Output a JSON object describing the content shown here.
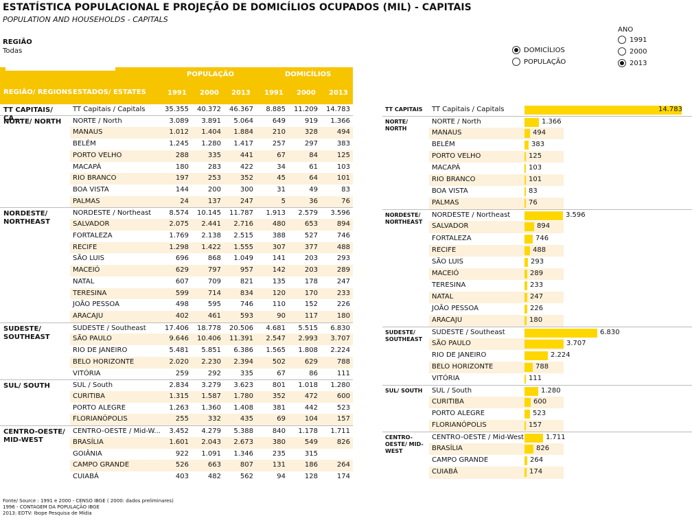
{
  "title": "ESTATÍSTICA POPULACIONAL  E PROJEÇÃO DE DOMICÍLIOS OCUPADOS (MIL) - CAPITAIS",
  "subtitle": "POPULATION AND HOUSEHOLDS - CAPITALS",
  "filter": {
    "label": "REGIÃO",
    "value": "Todas"
  },
  "measure": {
    "options": [
      "DOMICÍLIOS",
      "POPULAÇÃO"
    ],
    "selected": "DOMICÍLIOS"
  },
  "year": {
    "label": "ANO",
    "options": [
      "1991",
      "2000",
      "2013"
    ],
    "selected": "2013"
  },
  "table": {
    "group_headers": [
      "POPULAÇÃO",
      "DOMICÍLIOS"
    ],
    "col_region": "REGIÃO/ REGIONS",
    "col_state": "ESTADOS/ ESTATES",
    "years": [
      "1991",
      "2000",
      "2013",
      "1991",
      "2000",
      "2013"
    ],
    "total": {
      "region": "TT CAPITAIS/ CA...",
      "name": "TT Capitais / Capitals",
      "vals": [
        "35.355",
        "40.372",
        "46.367",
        "8.885",
        "11.209",
        "14.783"
      ]
    },
    "groups": [
      {
        "region": "NORTE/ NORTH",
        "rows": [
          {
            "name": "NORTE / North",
            "vals": [
              "3.089",
              "3.891",
              "5.064",
              "649",
              "919",
              "1.366"
            ]
          },
          {
            "name": "MANAUS",
            "vals": [
              "1.012",
              "1.404",
              "1.884",
              "210",
              "328",
              "494"
            ]
          },
          {
            "name": "BELÉM",
            "vals": [
              "1.245",
              "1.280",
              "1.417",
              "257",
              "297",
              "383"
            ]
          },
          {
            "name": "PORTO VELHO",
            "vals": [
              "288",
              "335",
              "441",
              "67",
              "84",
              "125"
            ]
          },
          {
            "name": "MACAPÁ",
            "vals": [
              "180",
              "283",
              "422",
              "34",
              "61",
              "103"
            ]
          },
          {
            "name": "RIO BRANCO",
            "vals": [
              "197",
              "253",
              "352",
              "45",
              "64",
              "101"
            ]
          },
          {
            "name": "BOA VISTA",
            "vals": [
              "144",
              "200",
              "300",
              "31",
              "49",
              "83"
            ]
          },
          {
            "name": "PALMAS",
            "vals": [
              "24",
              "137",
              "247",
              "5",
              "36",
              "76"
            ]
          }
        ]
      },
      {
        "region": "NORDESTE/ NORTHEAST",
        "rows": [
          {
            "name": "NORDESTE /  Northeast",
            "vals": [
              "8.574",
              "10.145",
              "11.787",
              "1.913",
              "2.579",
              "3.596"
            ]
          },
          {
            "name": "SALVADOR",
            "vals": [
              "2.075",
              "2.441",
              "2.716",
              "480",
              "653",
              "894"
            ]
          },
          {
            "name": "FORTALEZA",
            "vals": [
              "1.769",
              "2.138",
              "2.515",
              "388",
              "527",
              "746"
            ]
          },
          {
            "name": "RECIFE",
            "vals": [
              "1.298",
              "1.422",
              "1.555",
              "307",
              "377",
              "488"
            ]
          },
          {
            "name": "SÃO LUIS",
            "vals": [
              "696",
              "868",
              "1.049",
              "141",
              "203",
              "293"
            ]
          },
          {
            "name": "MACEIÓ",
            "vals": [
              "629",
              "797",
              "957",
              "142",
              "203",
              "289"
            ]
          },
          {
            "name": "NATAL",
            "vals": [
              "607",
              "709",
              "821",
              "135",
              "178",
              "247"
            ]
          },
          {
            "name": "TERESINA",
            "vals": [
              "599",
              "714",
              "834",
              "120",
              "170",
              "233"
            ]
          },
          {
            "name": "JOÃO PESSOA",
            "vals": [
              "498",
              "595",
              "746",
              "110",
              "152",
              "226"
            ]
          },
          {
            "name": "ARACAJU",
            "vals": [
              "402",
              "461",
              "593",
              "90",
              "117",
              "180"
            ]
          }
        ]
      },
      {
        "region": "SUDESTE/ SOUTHEAST",
        "rows": [
          {
            "name": "SUDESTE / Southeast",
            "vals": [
              "17.406",
              "18.778",
              "20.506",
              "4.681",
              "5.515",
              "6.830"
            ]
          },
          {
            "name": "SÃO PAULO",
            "vals": [
              "9.646",
              "10.406",
              "11.391",
              "2.547",
              "2.993",
              "3.707"
            ]
          },
          {
            "name": "RIO DE JANEIRO",
            "vals": [
              "5.481",
              "5.851",
              "6.386",
              "1.565",
              "1.808",
              "2.224"
            ]
          },
          {
            "name": "BELO HORIZONTE",
            "vals": [
              "2.020",
              "2.230",
              "2.394",
              "502",
              "629",
              "788"
            ]
          },
          {
            "name": "VITÓRIA",
            "vals": [
              "259",
              "292",
              "335",
              "67",
              "86",
              "111"
            ]
          }
        ]
      },
      {
        "region": "SUL/ SOUTH",
        "rows": [
          {
            "name": "SUL / South",
            "vals": [
              "2.834",
              "3.279",
              "3.623",
              "801",
              "1.018",
              "1.280"
            ]
          },
          {
            "name": "CURITIBA",
            "vals": [
              "1.315",
              "1.587",
              "1.780",
              "352",
              "472",
              "600"
            ]
          },
          {
            "name": "PORTO ALEGRE",
            "vals": [
              "1.263",
              "1.360",
              "1.408",
              "381",
              "442",
              "523"
            ]
          },
          {
            "name": "FLORIANÓPOLIS",
            "vals": [
              "255",
              "332",
              "435",
              "69",
              "104",
              "157"
            ]
          }
        ]
      },
      {
        "region": "CENTRO-OESTE/ MID-WEST",
        "rows": [
          {
            "name": "CENTRO-OESTE / Mid-W...",
            "vals": [
              "3.452",
              "4.279",
              "5.388",
              "840",
              "1.178",
              "1.711"
            ]
          },
          {
            "name": "BRASÍLIA",
            "vals": [
              "1.601",
              "2.043",
              "2.673",
              "380",
              "549",
              "826"
            ]
          },
          {
            "name": "GOIÂNIA",
            "vals": [
              "922",
              "1.091",
              "1.346",
              "235",
              "315",
              ""
            ]
          },
          {
            "name": "CAMPO GRANDE",
            "vals": [
              "526",
              "663",
              "807",
              "131",
              "186",
              "264"
            ]
          },
          {
            "name": "CUIABÁ",
            "vals": [
              "403",
              "482",
              "562",
              "94",
              "128",
              "174"
            ]
          }
        ]
      }
    ]
  },
  "chart_data": {
    "type": "bar",
    "orientation": "horizontal",
    "total": {
      "region": "TT CAPITAIS",
      "name": "TT Capitais / Capitals",
      "value": 14783,
      "label": "14.783"
    },
    "groups": [
      {
        "region": "NORTE/ NORTH",
        "rows": [
          {
            "name": "NORTE / North",
            "value": 1366,
            "label": "1.366"
          },
          {
            "name": "MANAUS",
            "value": 494,
            "label": "494"
          },
          {
            "name": "BELÉM",
            "value": 383,
            "label": "383"
          },
          {
            "name": "PORTO VELHO",
            "value": 125,
            "label": "125"
          },
          {
            "name": "MACAPÁ",
            "value": 103,
            "label": "103"
          },
          {
            "name": "RIO BRANCO",
            "value": 101,
            "label": "101"
          },
          {
            "name": "BOA VISTA",
            "value": 83,
            "label": "83"
          },
          {
            "name": "PALMAS",
            "value": 76,
            "label": "76"
          }
        ]
      },
      {
        "region": "NORDESTE/ NORTHEAST",
        "rows": [
          {
            "name": "NORDESTE /  Northeast",
            "value": 3596,
            "label": "3.596"
          },
          {
            "name": "SALVADOR",
            "value": 894,
            "label": "894"
          },
          {
            "name": "FORTALEZA",
            "value": 746,
            "label": "746"
          },
          {
            "name": "RECIFE",
            "value": 488,
            "label": "488"
          },
          {
            "name": "SÃO LUIS",
            "value": 293,
            "label": "293"
          },
          {
            "name": "MACEIÓ",
            "value": 289,
            "label": "289"
          },
          {
            "name": "TERESINA",
            "value": 233,
            "label": "233"
          },
          {
            "name": "NATAL",
            "value": 247,
            "label": "247"
          },
          {
            "name": "JOÃO PESSOA",
            "value": 226,
            "label": "226"
          },
          {
            "name": "ARACAJU",
            "value": 180,
            "label": "180"
          }
        ]
      },
      {
        "region": "SUDESTE/ SOUTHEAST",
        "rows": [
          {
            "name": "SUDESTE / Southeast",
            "value": 6830,
            "label": "6.830"
          },
          {
            "name": "SÃO PAULO",
            "value": 3707,
            "label": "3.707"
          },
          {
            "name": "RIO DE JANEIRO",
            "value": 2224,
            "label": "2.224"
          },
          {
            "name": "BELO HORIZONTE",
            "value": 788,
            "label": "788"
          },
          {
            "name": "VITÓRIA",
            "value": 111,
            "label": "111"
          }
        ]
      },
      {
        "region": "SUL/ SOUTH",
        "rows": [
          {
            "name": "SUL / South",
            "value": 1280,
            "label": "1.280"
          },
          {
            "name": "CURITIBA",
            "value": 600,
            "label": "600"
          },
          {
            "name": "PORTO ALEGRE",
            "value": 523,
            "label": "523"
          },
          {
            "name": "FLORIANÓPOLIS",
            "value": 157,
            "label": "157"
          }
        ]
      },
      {
        "region": "CENTRO-OESTE/ MID-WEST",
        "rows": [
          {
            "name": "CENTRO-OESTE / Mid-West",
            "value": 1711,
            "label": "1.711"
          },
          {
            "name": "BRASÍLIA",
            "value": 826,
            "label": "826"
          },
          {
            "name": "CAMPO GRANDE",
            "value": 264,
            "label": "264"
          },
          {
            "name": "CUIABÁ",
            "value": 174,
            "label": "174"
          }
        ]
      }
    ]
  },
  "footnotes": [
    "Fonte/ Source : 1991 e 2000 - CENSO IBGE ( 2000: dados preliminares)",
    "1996 - CONTAGEM DA POPULAÇÃO IBGE",
    "2013: EDTV: Ibope Pesquisa de Mídia"
  ],
  "colors": {
    "accent": "#f7c400",
    "bar": "#ffd700",
    "row_shade": "#fdf1dc"
  }
}
